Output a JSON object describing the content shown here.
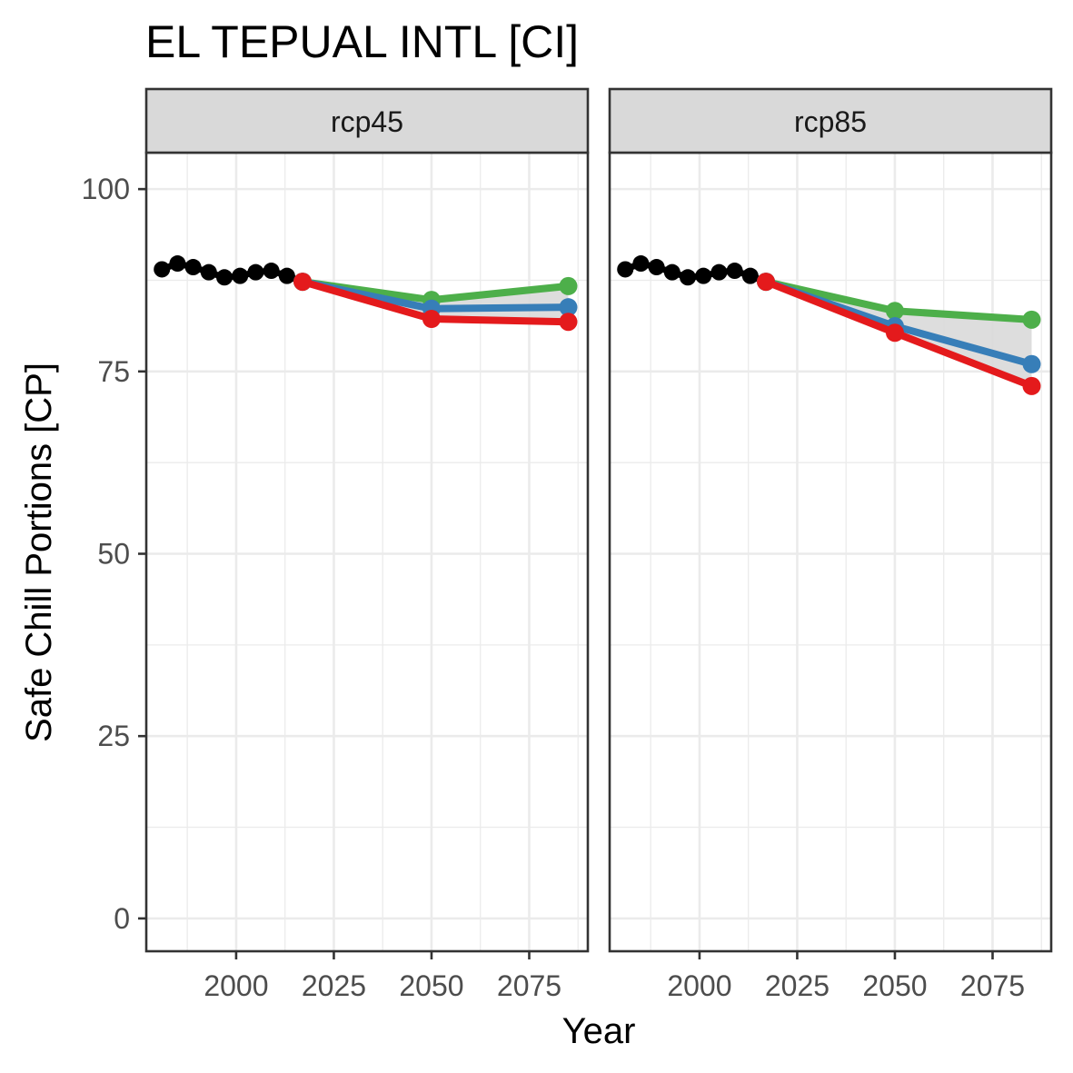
{
  "chart_data": {
    "type": "line",
    "title": "EL TEPUAL INTL [CI]",
    "xlabel": "Year",
    "ylabel": "Safe Chill Portions [CP]",
    "xlim": [
      1977,
      2090
    ],
    "ylim": [
      -4.5,
      105
    ],
    "x_ticks": [
      2000,
      2025,
      2050,
      2075
    ],
    "x_minor_ticks": [
      1987.5,
      2012.5,
      2037.5,
      2062.5,
      2087.5
    ],
    "y_ticks": [
      0,
      25,
      50,
      75,
      100
    ],
    "y_minor_ticks": [
      12.5,
      37.5,
      62.5,
      87.5
    ],
    "grid": true,
    "legend": "none",
    "colors": {
      "historic": "#000000",
      "green": "#4DAF4A",
      "blue": "#377EB8",
      "red": "#E41A1C",
      "band": "#D9D9D9",
      "strip_fill": "#D9D9D9",
      "panel_border": "#333333",
      "grid": "#EBEBEB"
    },
    "historic": {
      "x": [
        1981,
        1985,
        1989,
        1993,
        1997,
        2001,
        2005,
        2009,
        2013
      ],
      "y": [
        89,
        89.8,
        89.3,
        88.6,
        87.9,
        88.1,
        88.6,
        88.8,
        88.1
      ]
    },
    "facets": [
      {
        "label": "rcp45",
        "band": {
          "x": [
            2017,
            2050,
            2085
          ],
          "lower": [
            87.3,
            82.2,
            81.8
          ],
          "upper": [
            87.3,
            84.8,
            86.7
          ]
        },
        "series": [
          {
            "color_key": "green",
            "x": [
              2017,
              2050,
              2085
            ],
            "y": [
              87.3,
              84.8,
              86.7
            ]
          },
          {
            "color_key": "blue",
            "x": [
              2017,
              2050,
              2085
            ],
            "y": [
              87.3,
              83.6,
              83.8
            ]
          },
          {
            "color_key": "red",
            "x": [
              2017,
              2050,
              2085
            ],
            "y": [
              87.3,
              82.2,
              81.8
            ]
          }
        ]
      },
      {
        "label": "rcp85",
        "band": {
          "x": [
            2017,
            2050,
            2085
          ],
          "lower": [
            87.3,
            80.3,
            73
          ],
          "upper": [
            87.3,
            83.3,
            82.1
          ]
        },
        "series": [
          {
            "color_key": "green",
            "x": [
              2017,
              2050,
              2085
            ],
            "y": [
              87.3,
              83.3,
              82.1
            ]
          },
          {
            "color_key": "blue",
            "x": [
              2017,
              2050,
              2085
            ],
            "y": [
              87.3,
              81.2,
              76
            ]
          },
          {
            "color_key": "red",
            "x": [
              2017,
              2050,
              2085
            ],
            "y": [
              87.3,
              80.3,
              73
            ]
          }
        ]
      }
    ]
  }
}
